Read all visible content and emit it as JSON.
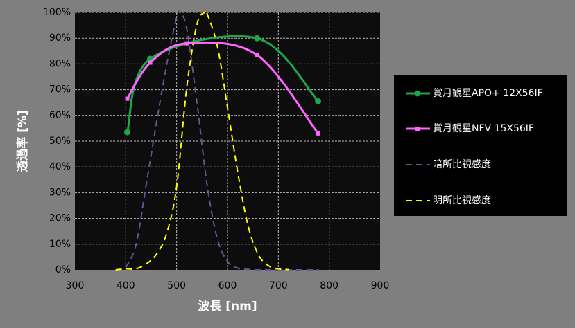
{
  "chart_data": {
    "type": "line",
    "x_label": "波長 [nm]",
    "y_label": "透過率 [%]",
    "xlim": [
      300,
      900
    ],
    "xticks": [
      300,
      400,
      500,
      600,
      700,
      800,
      900
    ],
    "ylim": [
      0,
      100
    ],
    "yticks": [
      {
        "value": 0,
        "label": "0%"
      },
      {
        "value": 10,
        "label": "10%"
      },
      {
        "value": 20,
        "label": "20%"
      },
      {
        "value": 30,
        "label": "30%"
      },
      {
        "value": 40,
        "label": "40%"
      },
      {
        "value": 50,
        "label": "50%"
      },
      {
        "value": 60,
        "label": "60%"
      },
      {
        "value": 70,
        "label": "70%"
      },
      {
        "value": 80,
        "label": "80%"
      },
      {
        "value": 90,
        "label": "90%"
      },
      {
        "value": 100,
        "label": "100%"
      }
    ],
    "grid": true,
    "legend": "right",
    "series": [
      {
        "name": "賞月観星APO+ 12X56IF",
        "color": "#1fa54a",
        "line_style": "solid",
        "marker": "circle",
        "x": [
          403,
          448,
          658,
          778
        ],
        "values": [
          53.5,
          82,
          90,
          65.5
        ]
      },
      {
        "name": "賞月観星NFV 15X56IF",
        "color": "#ff66ff",
        "line_style": "solid",
        "marker": "square",
        "x": [
          403,
          448,
          520,
          658,
          778
        ],
        "values": [
          66.5,
          80.5,
          88,
          83.5,
          53
        ]
      },
      {
        "name": "暗所比視感度",
        "color": "#66558f",
        "line_style": "dashed",
        "x": [
          400,
          420,
          440,
          460,
          480,
          500,
          507,
          520,
          540,
          560,
          580,
          600,
          620,
          640,
          660,
          680,
          700,
          780
        ],
        "values": [
          0.9,
          9.7,
          32.8,
          56.7,
          79.3,
          98.2,
          100,
          93.5,
          65,
          32.9,
          12.1,
          3.3,
          0.7,
          0.2,
          0,
          0,
          0,
          0
        ]
      },
      {
        "name": "明所比視感度",
        "color": "#ffff00",
        "line_style": "dashed",
        "x": [
          380,
          400,
          420,
          440,
          460,
          480,
          500,
          520,
          540,
          555,
          560,
          580,
          600,
          620,
          640,
          660,
          680,
          700,
          720
        ],
        "values": [
          0,
          0.4,
          0.4,
          2.3,
          6,
          13.9,
          32.3,
          71,
          95.4,
          100,
          99.5,
          87,
          63.1,
          38.1,
          17.5,
          6.1,
          1.7,
          0.4,
          0.1
        ]
      }
    ]
  }
}
